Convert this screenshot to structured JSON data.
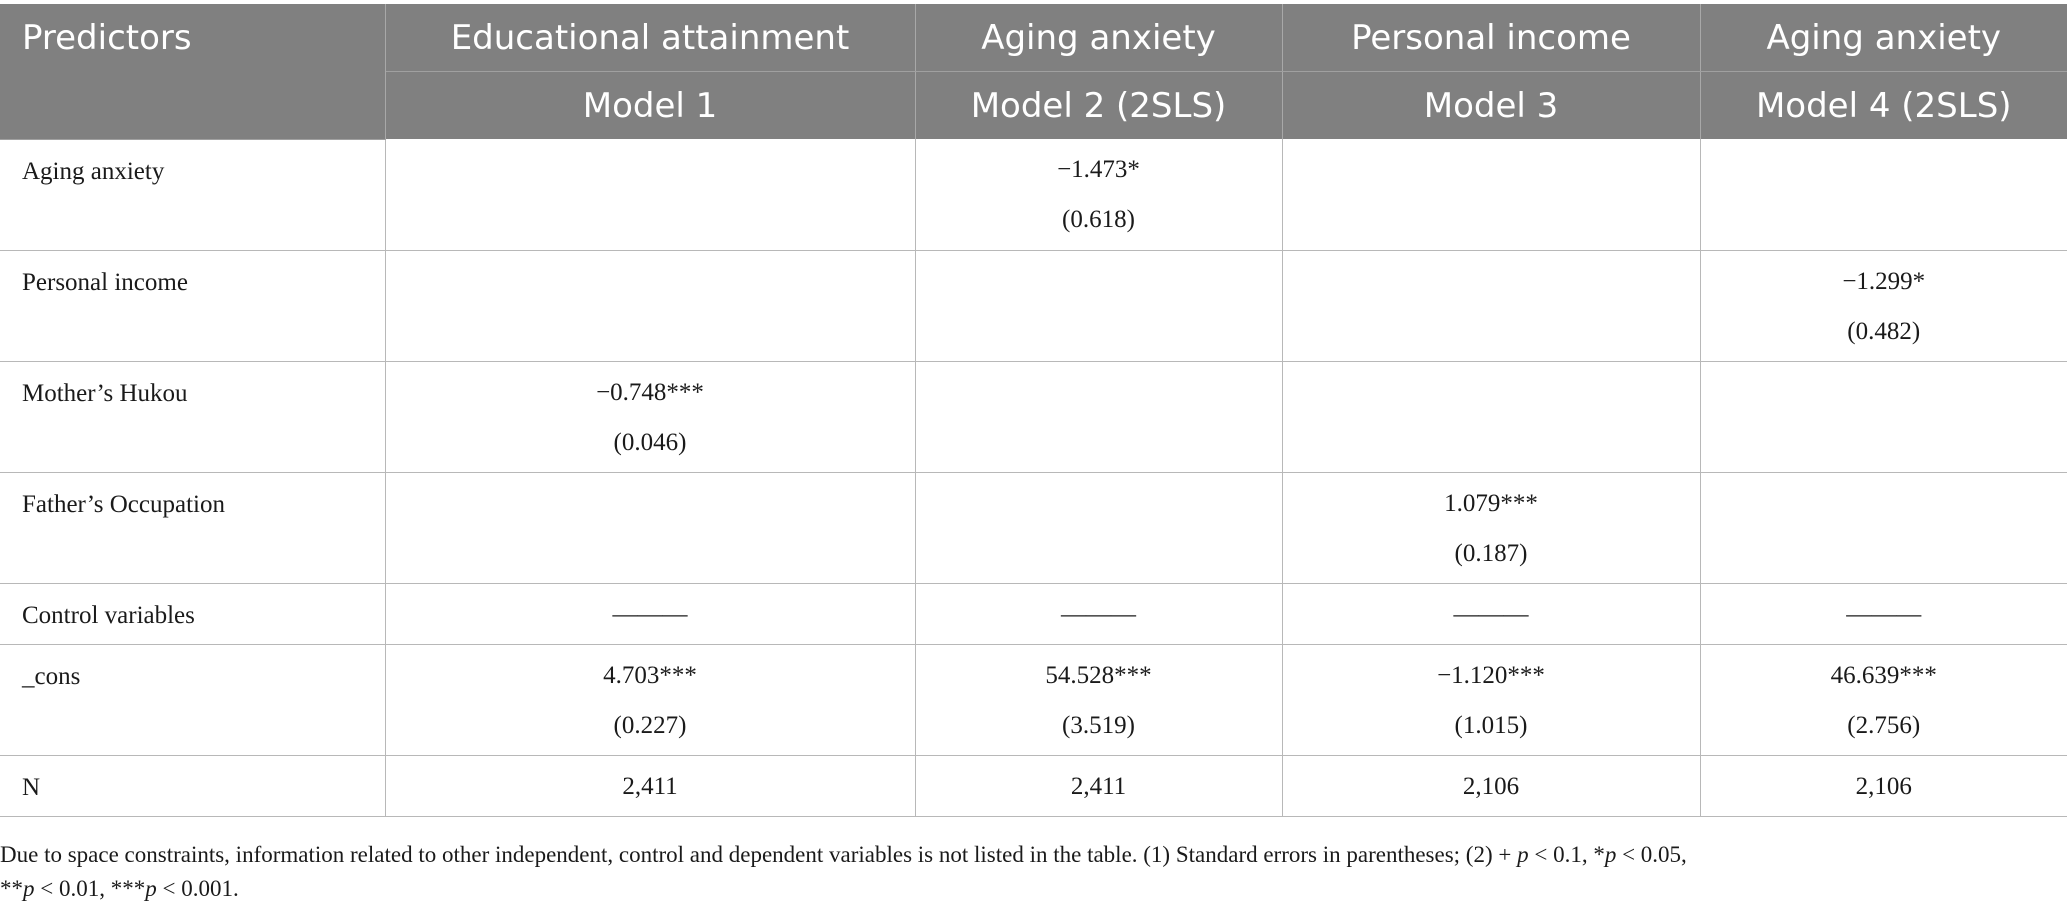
{
  "table": {
    "header_row1": {
      "predictors": "Predictors",
      "cols": [
        "Educational attainment",
        "Aging anxiety",
        "Personal income",
        "Aging anxiety"
      ]
    },
    "header_row2": {
      "cols": [
        "Model 1",
        "Model 2 (2SLS)",
        "Model 3",
        "Model 4 (2SLS)"
      ]
    },
    "rows": [
      {
        "label": "Aging anxiety",
        "cells": [
          {
            "coef": "",
            "se": ""
          },
          {
            "coef": "−1.473*",
            "se": "(0.618)"
          },
          {
            "coef": "",
            "se": ""
          },
          {
            "coef": "",
            "se": ""
          }
        ]
      },
      {
        "label": "Personal income",
        "cells": [
          {
            "coef": "",
            "se": ""
          },
          {
            "coef": "",
            "se": ""
          },
          {
            "coef": "",
            "se": ""
          },
          {
            "coef": "−1.299*",
            "se": "(0.482)"
          }
        ]
      },
      {
        "label": "Mother’s Hukou",
        "cells": [
          {
            "coef": "−0.748***",
            "se": "(0.046)"
          },
          {
            "coef": "",
            "se": ""
          },
          {
            "coef": "",
            "se": ""
          },
          {
            "coef": "",
            "se": ""
          }
        ]
      },
      {
        "label": "Father’s Occupation",
        "cells": [
          {
            "coef": "",
            "se": ""
          },
          {
            "coef": "",
            "se": ""
          },
          {
            "coef": "1.079***",
            "se": "(0.187)"
          },
          {
            "coef": "",
            "se": ""
          }
        ]
      },
      {
        "label": "Control variables",
        "cells": [
          "———",
          "———",
          "———",
          "———"
        ]
      },
      {
        "label": "_cons",
        "cells": [
          {
            "coef": "4.703***",
            "se": "(0.227)"
          },
          {
            "coef": "54.528***",
            "se": "(3.519)"
          },
          {
            "coef": "−1.120***",
            "se": "(1.015)"
          },
          {
            "coef": "46.639***",
            "se": "(2.756)"
          }
        ]
      },
      {
        "label": "N",
        "cells": [
          "2,411",
          "2,411",
          "2,106",
          "2,106"
        ]
      }
    ]
  },
  "note": {
    "part1": "Due to space constraints, information related to other independent, control and dependent variables is not listed in the table. (1) Standard errors in parentheses; (2) + ",
    "p": "p",
    "part2": " < 0.1, *",
    "part3": " < 0.05,",
    "part4": "**",
    "part5": " < 0.01, ***",
    "part6": " < 0.001."
  }
}
